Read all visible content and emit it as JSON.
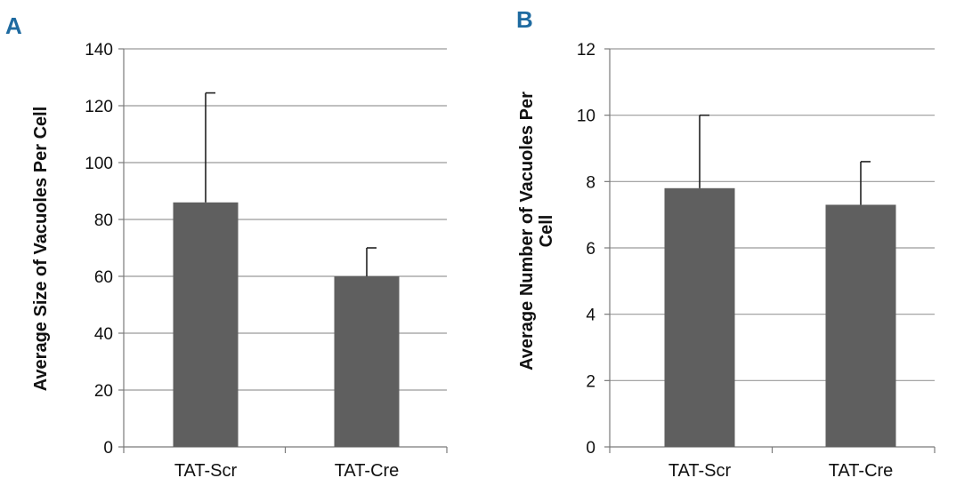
{
  "theme": {
    "letter_color": "#1e6aa0",
    "bar_color": "#5f5f5f",
    "grid_color": "#9a9a9a",
    "axis_color": "#7a7a7a",
    "error_color": "#222222"
  },
  "chart_data": [
    {
      "panel": "A",
      "type": "bar",
      "categories": [
        "TAT-Scr",
        "TAT-Cre"
      ],
      "values": [
        86,
        60
      ],
      "error_upper": [
        124.5,
        70
      ],
      "ylabel_lines": [
        "Average Size of Vacuoles Per Cell"
      ],
      "ylim": [
        0,
        140
      ],
      "yticks": [
        "0",
        "20",
        "40",
        "60",
        "80",
        "100",
        "120",
        "140"
      ],
      "grid": true
    },
    {
      "panel": "B",
      "type": "bar",
      "categories": [
        "TAT-Scr",
        "TAT-Cre"
      ],
      "values": [
        7.8,
        7.3
      ],
      "error_upper": [
        10,
        8.6
      ],
      "ylabel_lines": [
        "Average Number of Vacuoles Per",
        "Cell"
      ],
      "ylim": [
        0,
        12
      ],
      "yticks": [
        "0",
        "2",
        "4",
        "6",
        "8",
        "10",
        "12"
      ],
      "grid": true
    }
  ]
}
